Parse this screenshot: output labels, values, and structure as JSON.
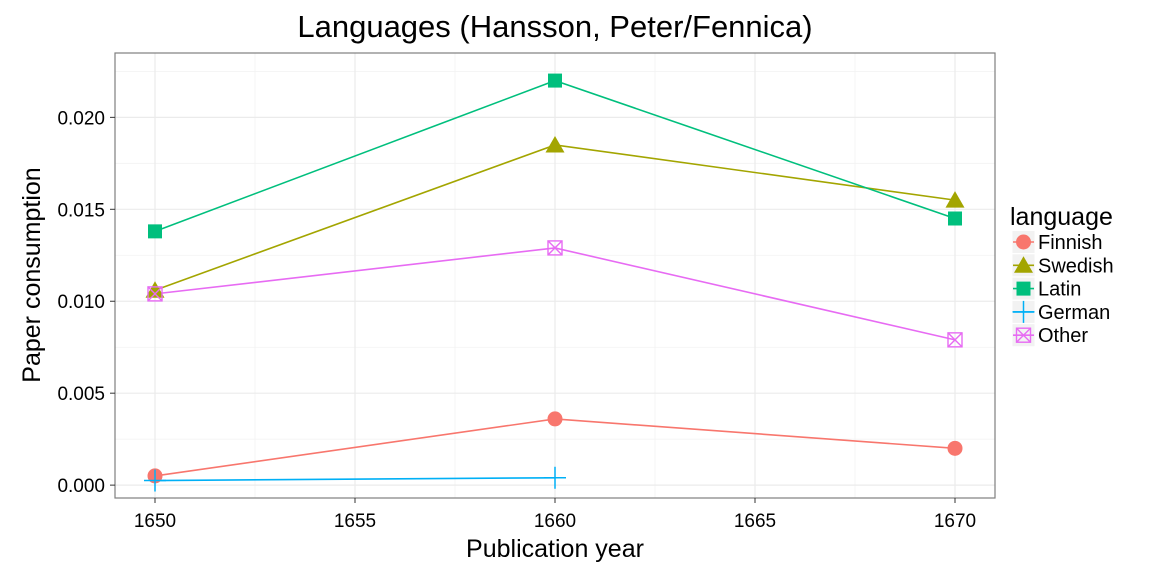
{
  "chart_data": {
    "type": "line",
    "title": "Languages (Hansson, Peter/Fennica)",
    "xlabel": "Publication year",
    "ylabel": "Paper consumption",
    "xlim": [
      1649.0,
      1671.0
    ],
    "ylim": [
      -0.0007,
      0.0235
    ],
    "x_ticks": [
      1650,
      1655,
      1660,
      1665,
      1670
    ],
    "x_tick_labels": [
      "1650",
      "1655",
      "1660",
      "1665",
      "1670"
    ],
    "y_ticks": [
      0.0,
      0.005,
      0.01,
      0.015,
      0.02
    ],
    "y_tick_labels": [
      "0.000",
      "0.005",
      "0.010",
      "0.015",
      "0.020"
    ],
    "grid": true,
    "legend": {
      "title": "language",
      "position": "right"
    },
    "series": [
      {
        "name": "Finnish",
        "color": "#F8766D",
        "marker": "circle",
        "points": [
          [
            1650,
            0.0005
          ],
          [
            1660,
            0.0036
          ],
          [
            1670,
            0.002
          ]
        ]
      },
      {
        "name": "Swedish",
        "color": "#A3A500",
        "marker": "triangle",
        "points": [
          [
            1650,
            0.0106
          ],
          [
            1660,
            0.0185
          ],
          [
            1670,
            0.0155
          ]
        ]
      },
      {
        "name": "Latin",
        "color": "#00BF7D",
        "marker": "square",
        "points": [
          [
            1650,
            0.0138
          ],
          [
            1660,
            0.022
          ],
          [
            1670,
            0.0145
          ]
        ]
      },
      {
        "name": "German",
        "color": "#00B0F6",
        "marker": "plus",
        "points": [
          [
            1650,
            0.00025
          ],
          [
            1660,
            0.0004
          ]
        ]
      },
      {
        "name": "Other",
        "color": "#E76BF3",
        "marker": "square-cross",
        "points": [
          [
            1650,
            0.0104
          ],
          [
            1660,
            0.0129
          ],
          [
            1670,
            0.0079
          ]
        ]
      }
    ]
  }
}
